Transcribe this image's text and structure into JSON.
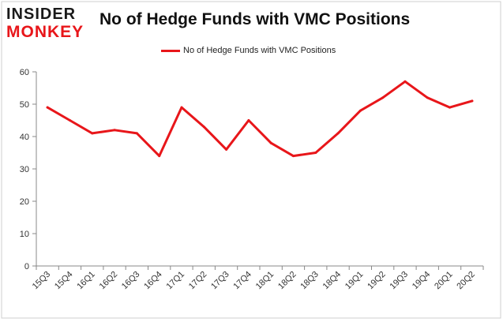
{
  "logo": {
    "top": "INSIDER",
    "bottom": "MONKEY"
  },
  "chart_data": {
    "type": "line",
    "title": "No of Hedge Funds with VMC Positions",
    "xlabel": "",
    "ylabel": "",
    "categories": [
      "15Q3",
      "15Q4",
      "16Q1",
      "16Q2",
      "16Q3",
      "16Q4",
      "17Q1",
      "17Q2",
      "17Q3",
      "17Q4",
      "18Q1",
      "18Q2",
      "18Q3",
      "18Q4",
      "19Q1",
      "19Q2",
      "19Q3",
      "19Q4",
      "20Q1",
      "20Q2"
    ],
    "series": [
      {
        "name": "No of Hedge Funds with VMC Positions",
        "values": [
          49,
          45,
          41,
          42,
          41,
          34,
          49,
          43,
          36,
          45,
          38,
          34,
          35,
          41,
          48,
          52,
          57,
          52,
          49,
          51
        ]
      }
    ],
    "ylim": [
      0,
      60
    ],
    "yticks": [
      0,
      10,
      20,
      30,
      40,
      50,
      60
    ],
    "grid": false,
    "legend_position": "top-center",
    "line_color": "#e8161a"
  }
}
